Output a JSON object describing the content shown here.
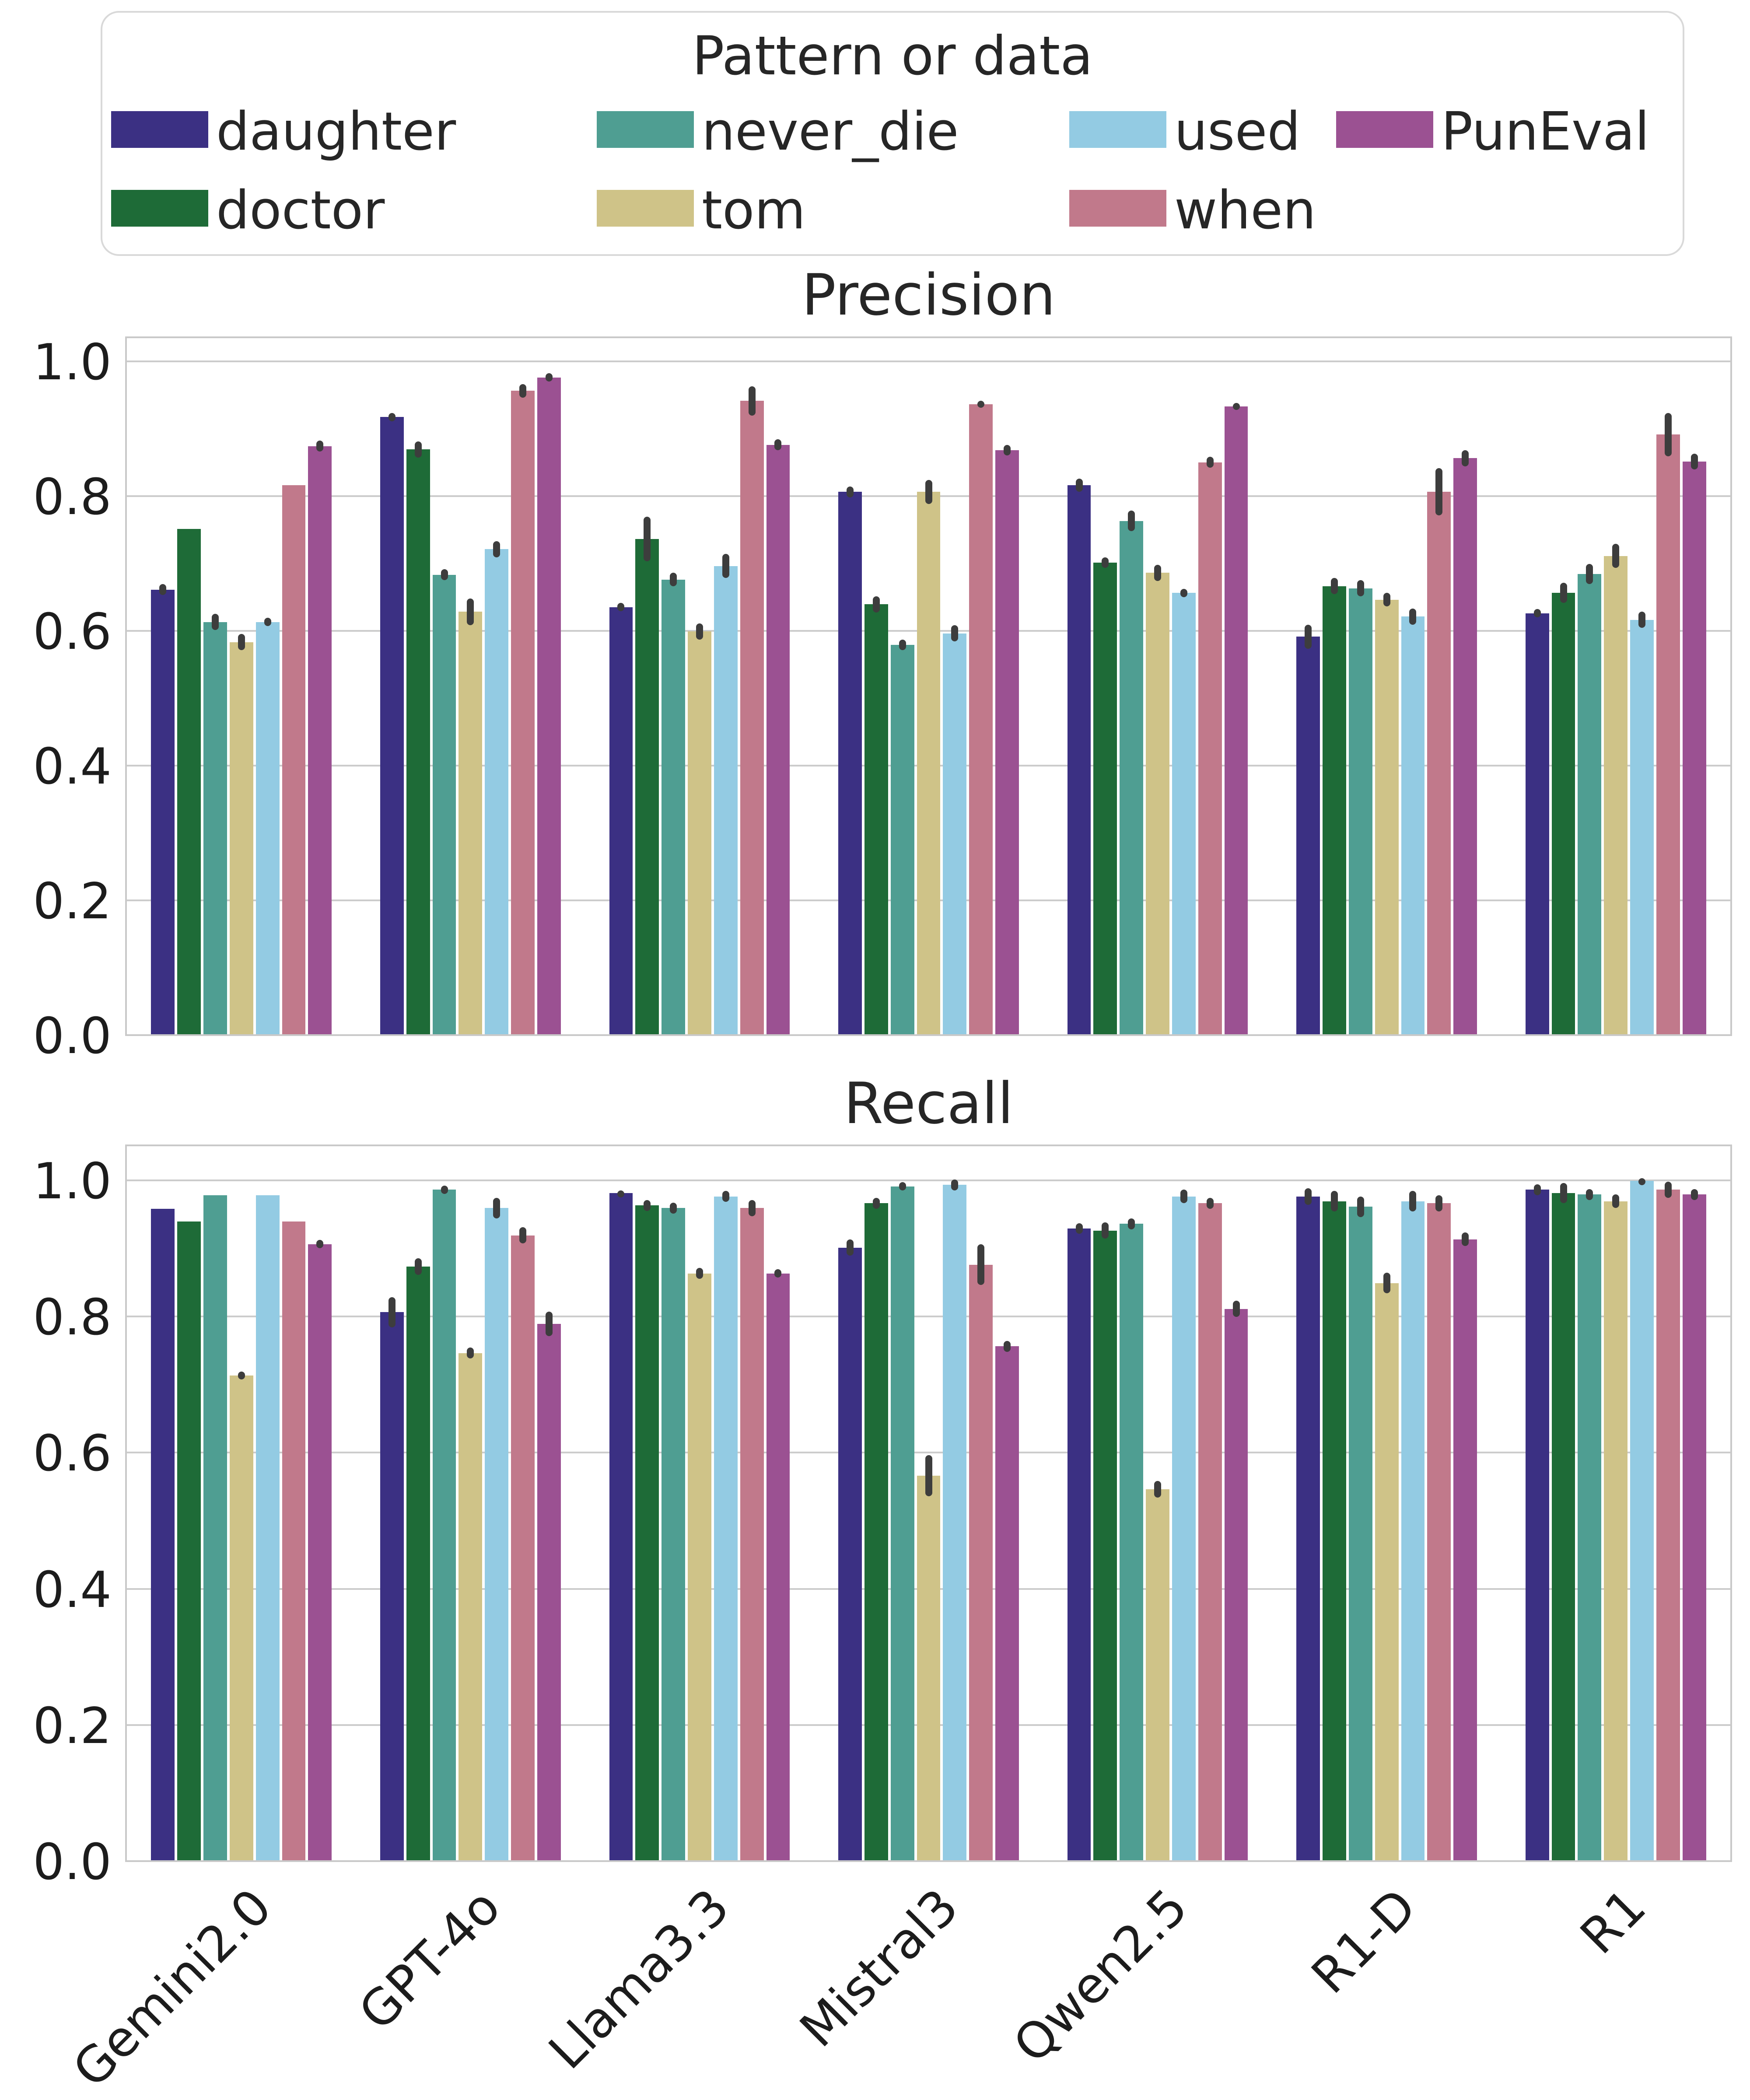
{
  "legend": {
    "title": "Pattern or data",
    "entries": [
      {
        "label": "daughter",
        "color": "#3B3083"
      },
      {
        "label": "doctor",
        "color": "#1E6B37"
      },
      {
        "label": "never_die",
        "color": "#4F9E92"
      },
      {
        "label": "tom",
        "color": "#CFC388"
      },
      {
        "label": "used",
        "color": "#93CBE3"
      },
      {
        "label": "when",
        "color": "#C1798B"
      },
      {
        "label": "PunEval",
        "color": "#9B5192"
      }
    ]
  },
  "axes": {
    "yticks": [
      "1.0",
      "0.8",
      "0.6",
      "0.4",
      "0.2",
      "0.0"
    ],
    "errorbar_color": "#3d3d3d",
    "grid_color": "#cccccc"
  },
  "chart_data": [
    {
      "type": "bar",
      "title": "Precision",
      "ylim": [
        0,
        1
      ],
      "grid": true,
      "legend_position": "top",
      "categories": [
        "Gemini2.0",
        "GPT-4o",
        "Llama3.3",
        "Mistral3",
        "Qwen2.5",
        "R1-D",
        "R1"
      ],
      "series": [
        {
          "name": "daughter",
          "values": [
            0.66,
            0.916,
            0.634,
            0.805,
            0.815,
            0.59,
            0.625
          ],
          "errors": [
            0.008,
            0.006,
            0.006,
            0.008,
            0.01,
            0.018,
            0.006
          ]
        },
        {
          "name": "doctor",
          "values": [
            0.75,
            0.868,
            0.735,
            0.638,
            0.7,
            0.665,
            0.655
          ],
          "errors": [
            0.0,
            0.012,
            0.033,
            0.012,
            0.008,
            0.012,
            0.015
          ]
        },
        {
          "name": "never_die",
          "values": [
            0.612,
            0.682,
            0.675,
            0.578,
            0.762,
            0.662,
            0.683
          ],
          "errors": [
            0.012,
            0.008,
            0.01,
            0.008,
            0.015,
            0.012,
            0.015
          ]
        },
        {
          "name": "tom",
          "values": [
            0.582,
            0.627,
            0.598,
            0.805,
            0.685,
            0.645,
            0.71
          ],
          "errors": [
            0.012,
            0.02,
            0.012,
            0.018,
            0.012,
            0.01,
            0.018
          ]
        },
        {
          "name": "used",
          "values": [
            0.612,
            0.72,
            0.695,
            0.595,
            0.655,
            0.62,
            0.615
          ],
          "errors": [
            0.006,
            0.012,
            0.018,
            0.012,
            0.006,
            0.012,
            0.012
          ]
        },
        {
          "name": "when",
          "values": [
            0.815,
            0.955,
            0.94,
            0.935,
            0.849,
            0.805,
            0.89
          ],
          "errors": [
            0.0,
            0.01,
            0.022,
            0.005,
            0.008,
            0.035,
            0.032
          ]
        },
        {
          "name": "PunEval",
          "values": [
            0.873,
            0.975,
            0.875,
            0.867,
            0.932,
            0.855,
            0.85
          ],
          "errors": [
            0.008,
            0.006,
            0.008,
            0.008,
            0.005,
            0.012,
            0.012
          ]
        }
      ]
    },
    {
      "type": "bar",
      "title": "Recall",
      "ylim": [
        0,
        1
      ],
      "grid": true,
      "categories": [
        "Gemini2.0",
        "GPT-4o",
        "Llama3.3",
        "Mistral3",
        "Qwen2.5",
        "R1-D",
        "R1"
      ],
      "series": [
        {
          "name": "daughter",
          "values": [
            0.957,
            0.805,
            0.98,
            0.9,
            0.928,
            0.975,
            0.985
          ],
          "errors": [
            0.0,
            0.022,
            0.004,
            0.012,
            0.008,
            0.012,
            0.008
          ]
        },
        {
          "name": "doctor",
          "values": [
            0.938,
            0.872,
            0.962,
            0.965,
            0.925,
            0.968,
            0.98
          ],
          "errors": [
            0.0,
            0.012,
            0.008,
            0.008,
            0.012,
            0.015,
            0.015
          ]
        },
        {
          "name": "never_die",
          "values": [
            0.977,
            0.985,
            0.958,
            0.99,
            0.935,
            0.96,
            0.978
          ],
          "errors": [
            0.0,
            0.006,
            0.008,
            0.006,
            0.008,
            0.015,
            0.008
          ]
        },
        {
          "name": "tom",
          "values": [
            0.712,
            0.745,
            0.862,
            0.565,
            0.545,
            0.848,
            0.968
          ],
          "errors": [
            0.006,
            0.008,
            0.008,
            0.03,
            0.012,
            0.015,
            0.01
          ]
        },
        {
          "name": "used",
          "values": [
            0.977,
            0.958,
            0.975,
            0.992,
            0.975,
            0.968,
            0.998
          ],
          "errors": [
            0.0,
            0.015,
            0.008,
            0.008,
            0.01,
            0.015,
            0.004
          ]
        },
        {
          "name": "when",
          "values": [
            0.938,
            0.918,
            0.958,
            0.875,
            0.965,
            0.965,
            0.985
          ],
          "errors": [
            0.0,
            0.012,
            0.012,
            0.03,
            0.008,
            0.012,
            0.012
          ]
        },
        {
          "name": "PunEval",
          "values": [
            0.905,
            0.788,
            0.862,
            0.755,
            0.81,
            0.912,
            0.978
          ],
          "errors": [
            0.006,
            0.018,
            0.006,
            0.008,
            0.012,
            0.01,
            0.008
          ]
        }
      ]
    }
  ]
}
